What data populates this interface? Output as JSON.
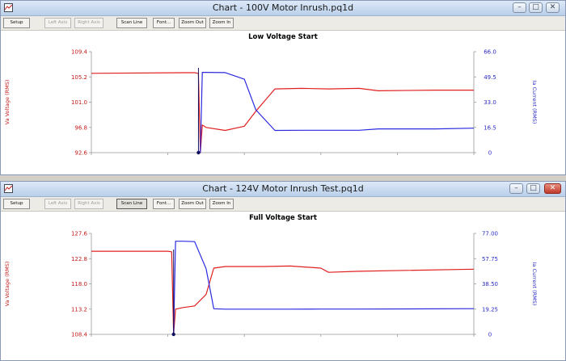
{
  "windows": [
    {
      "title": "Chart - 100V Motor Inrush.pq1d",
      "toolbar": {
        "setup": "Setup",
        "left_axis": "Left Axis",
        "right_axis": "Right Axis",
        "scan_line": "Scan Line",
        "font": "Font...",
        "zoom_out": "Zoom Out",
        "zoom_in": "Zoom In"
      },
      "window_buttons": {
        "minimize": "–",
        "maximize": "□",
        "close": "✕"
      },
      "chart_data": {
        "type": "line",
        "title": "Low Voltage Start",
        "ylabel": "Va Voltage (RMS)",
        "y2label": "Ia Current (RMS)",
        "ylim": [
          92.6,
          109.4
        ],
        "y2lim": [
          0,
          66.0
        ],
        "y_ticks": [
          "109.4",
          "105.2",
          "101.0",
          "96.8",
          "92.6"
        ],
        "y2_ticks": [
          "66.0",
          "49.5",
          "33.0",
          "16.5",
          "0"
        ],
        "x": [
          0,
          25,
          27,
          28,
          28.5,
          29,
          30,
          35,
          40,
          43,
          48,
          55,
          62,
          70,
          75,
          90,
          100
        ],
        "series": [
          {
            "color": "#e02020",
            "values": [
              105.8,
              105.9,
              105.9,
              105.8,
              92.6,
              97.2,
              96.8,
              96.3,
              97.0,
              99.5,
              103.2,
              103.3,
              103.2,
              103.3,
              102.9,
              103.0,
              103.0
            ]
          },
          {
            "color": "#2a2ae0",
            "values": [
              null,
              null,
              null,
              null,
              0,
              52.5,
              52.5,
              52.3,
              48.0,
              28.0,
              14.5,
              14.6,
              14.6,
              14.6,
              15.5,
              15.5,
              16.0
            ]
          }
        ],
        "grid": false
      }
    },
    {
      "title": "Chart - 124V Motor Inrush Test.pq1d",
      "toolbar": {
        "setup": "Setup",
        "left_axis": "Left Axis",
        "right_axis": "Right Axis",
        "scan_line": "Scan Line",
        "font": "Font...",
        "zoom_out": "Zoom Out",
        "zoom_in": "Zoom In"
      },
      "window_buttons": {
        "minimize": "–",
        "maximize": "□",
        "close": "✕"
      },
      "chart_data": {
        "type": "line",
        "title": "Full Voltage Start",
        "ylabel": "Va Voltage (RMS)",
        "y2label": "Ia Current (RMS)",
        "ylim": [
          108.4,
          127.6
        ],
        "y2lim": [
          0,
          77.0
        ],
        "y_ticks": [
          "127.6",
          "122.8",
          "118.0",
          "113.2",
          "108.4"
        ],
        "y2_ticks": [
          "77.00",
          "57.75",
          "38.50",
          "19.25",
          "0"
        ],
        "x": [
          0,
          20,
          21,
          21.5,
          22,
          24,
          27,
          30,
          32,
          35,
          45,
          52,
          60,
          62,
          70,
          100
        ],
        "series": [
          {
            "color": "#e02020",
            "values": [
              124.2,
              124.2,
              124.1,
              108.4,
              113.2,
              113.5,
              113.8,
              116.0,
              121.0,
              121.3,
              121.3,
              121.4,
              121.0,
              120.2,
              120.4,
              120.8
            ]
          },
          {
            "color": "#2a2ae0",
            "values": [
              null,
              null,
              null,
              0,
              71.0,
              71.0,
              70.7,
              50.0,
              19.5,
              19.2,
              19.2,
              19.2,
              19.3,
              19.3,
              19.3,
              19.6
            ]
          }
        ],
        "grid": false
      }
    }
  ]
}
